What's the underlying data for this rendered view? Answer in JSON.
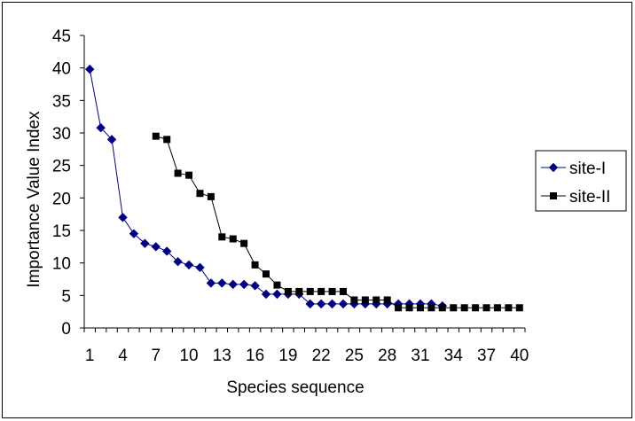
{
  "chart_data": {
    "type": "line",
    "title": "",
    "xlabel": "Species sequence",
    "ylabel": "Importance Value Index",
    "xlim": [
      1,
      40
    ],
    "ylim": [
      0,
      45
    ],
    "y_ticks": [
      0,
      5,
      10,
      15,
      20,
      25,
      30,
      35,
      40,
      45
    ],
    "x_tick_labels": [
      "1",
      "4",
      "7",
      "10",
      "13",
      "16",
      "19",
      "22",
      "25",
      "28",
      "31",
      "34",
      "37",
      "40"
    ],
    "grid": false,
    "legend_position": "right",
    "series": [
      {
        "name": "site-I",
        "marker": "diamond",
        "color": "#000080",
        "x": [
          1,
          2,
          3,
          4,
          5,
          6,
          7,
          8,
          9,
          10,
          11,
          12,
          13,
          14,
          15,
          16,
          17,
          18,
          19,
          20,
          21,
          22,
          23,
          24,
          25,
          26,
          27,
          28,
          29,
          30,
          31,
          32,
          33
        ],
        "values": [
          39.8,
          30.8,
          29,
          17,
          14.5,
          13,
          12.5,
          11.8,
          10.2,
          9.7,
          9.3,
          6.9,
          6.9,
          6.7,
          6.7,
          6.5,
          5.2,
          5.2,
          5.2,
          5.2,
          3.7,
          3.7,
          3.7,
          3.7,
          3.7,
          3.7,
          3.7,
          3.7,
          3.7,
          3.7,
          3.7,
          3.7,
          3.4
        ]
      },
      {
        "name": "site-II",
        "marker": "square",
        "color": "#000000",
        "x": [
          7,
          8,
          9,
          10,
          11,
          12,
          13,
          14,
          15,
          16,
          17,
          18,
          19,
          20,
          21,
          22,
          23,
          24,
          25,
          26,
          27,
          28,
          29,
          30,
          31,
          32,
          33,
          34,
          35,
          36,
          37,
          38,
          39,
          40
        ],
        "values": [
          29.5,
          29,
          23.8,
          23.5,
          20.7,
          20.2,
          14,
          13.7,
          13,
          9.7,
          8.3,
          6.6,
          5.6,
          5.6,
          5.6,
          5.6,
          5.6,
          5.6,
          4.3,
          4.3,
          4.3,
          4.3,
          3.1,
          3.1,
          3.1,
          3.1,
          3.1,
          3.1,
          3.1,
          3.1,
          3.1,
          3.1,
          3.1,
          3.1
        ]
      }
    ]
  }
}
